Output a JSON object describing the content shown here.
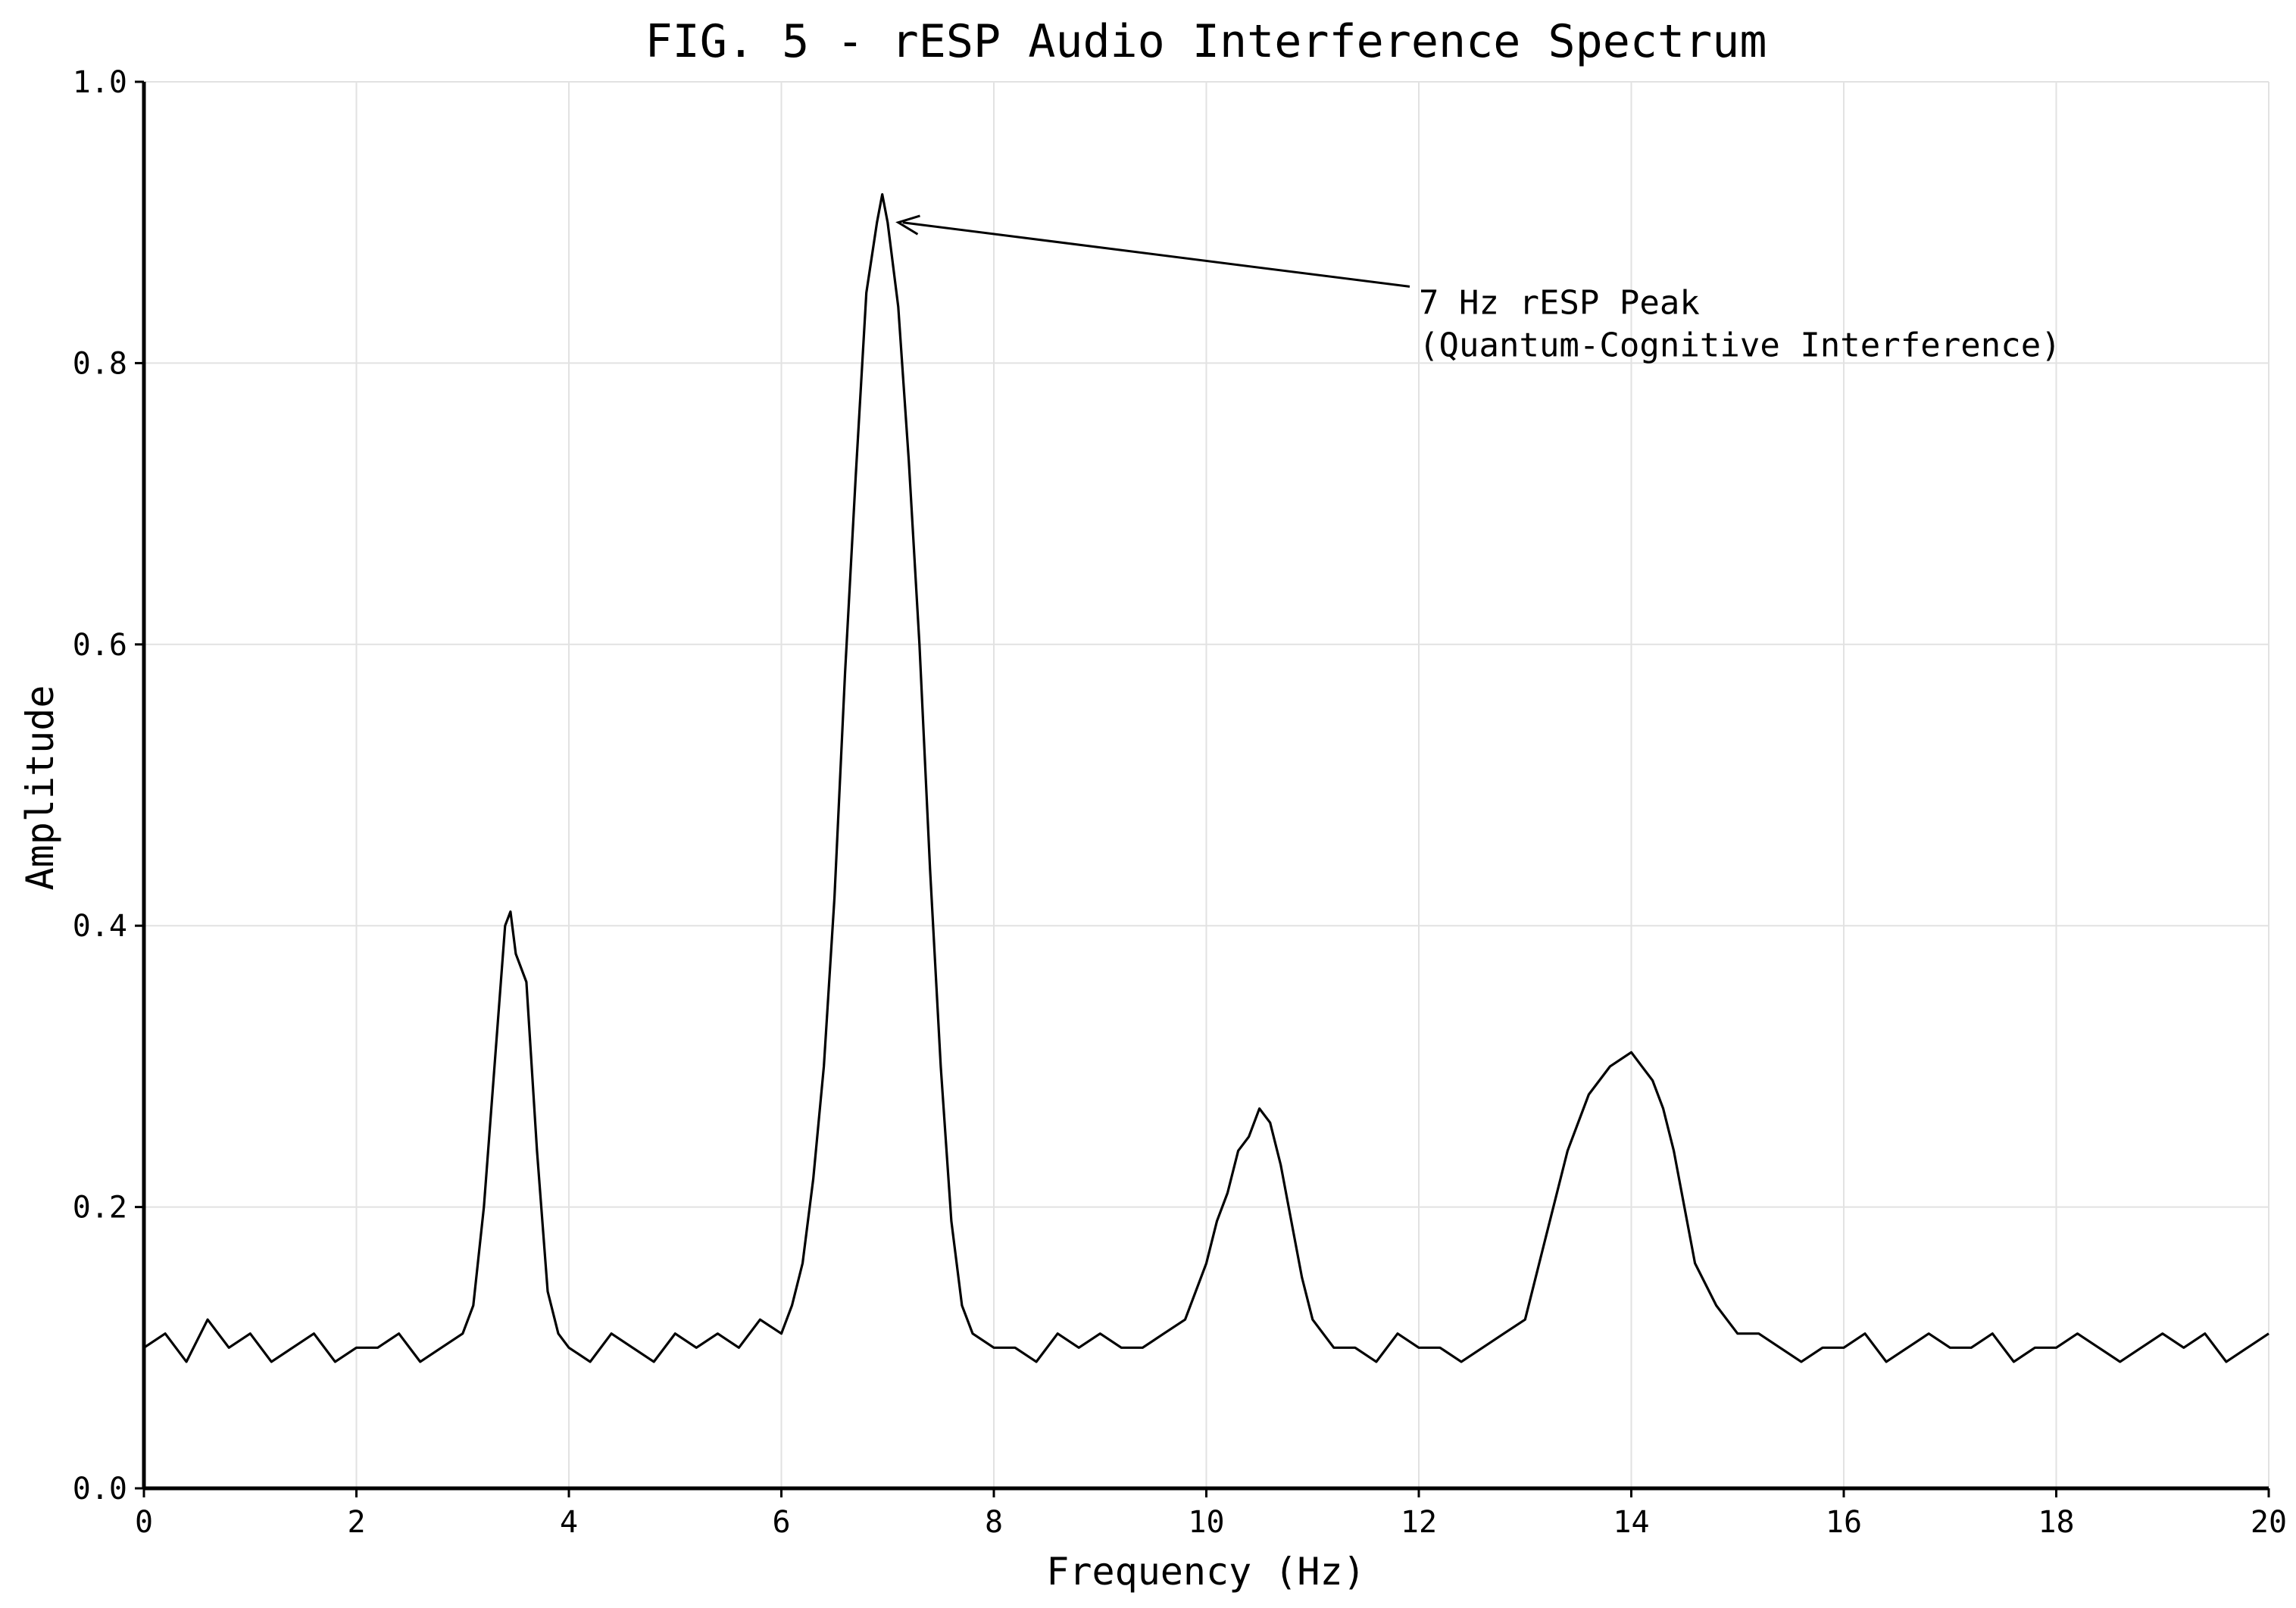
{
  "chart_data": {
    "type": "line",
    "title": "FIG. 5 - rESP Audio Interference Spectrum",
    "xlabel": "Frequency (Hz)",
    "ylabel": "Amplitude",
    "xlim": [
      0,
      20
    ],
    "ylim": [
      0.0,
      1.0
    ],
    "xticks": [
      0,
      2,
      4,
      6,
      8,
      10,
      12,
      14,
      16,
      18,
      20
    ],
    "yticks": [
      0.0,
      0.2,
      0.4,
      0.6,
      0.8,
      1.0
    ],
    "xtick_labels": [
      "0",
      "2",
      "4",
      "6",
      "8",
      "10",
      "12",
      "14",
      "16",
      "18",
      "20"
    ],
    "ytick_labels": [
      "0.0",
      "0.2",
      "0.4",
      "0.6",
      "0.8",
      "1.0"
    ],
    "grid": true,
    "line_color": "#000000",
    "series": [
      {
        "x": [
          0.0,
          0.2,
          0.4,
          0.6,
          0.8,
          1.0,
          1.2,
          1.4,
          1.6,
          1.8,
          2.0,
          2.2,
          2.4,
          2.6,
          2.8,
          3.0,
          3.1,
          3.2,
          3.3,
          3.4,
          3.45,
          3.5,
          3.6,
          3.7,
          3.8,
          3.9,
          4.0,
          4.2,
          4.4,
          4.6,
          4.8,
          5.0,
          5.2,
          5.4,
          5.6,
          5.8,
          6.0,
          6.1,
          6.2,
          6.3,
          6.4,
          6.5,
          6.6,
          6.7,
          6.8,
          6.9,
          6.95,
          7.0,
          7.1,
          7.2,
          7.3,
          7.4,
          7.5,
          7.6,
          7.7,
          7.8,
          8.0,
          8.2,
          8.4,
          8.6,
          8.8,
          9.0,
          9.2,
          9.4,
          9.6,
          9.8,
          10.0,
          10.1,
          10.2,
          10.3,
          10.4,
          10.5,
          10.6,
          10.7,
          10.8,
          10.9,
          11.0,
          11.2,
          11.4,
          11.6,
          11.8,
          12.0,
          12.2,
          12.4,
          12.6,
          12.8,
          13.0,
          13.2,
          13.4,
          13.6,
          13.8,
          14.0,
          14.1,
          14.2,
          14.3,
          14.4,
          14.5,
          14.6,
          14.8,
          15.0,
          15.2,
          15.4,
          15.6,
          15.8,
          16.0,
          16.2,
          16.4,
          16.6,
          16.8,
          17.0,
          17.2,
          17.4,
          17.6,
          17.8,
          18.0,
          18.2,
          18.4,
          18.6,
          18.8,
          19.0,
          19.2,
          19.4,
          19.6,
          19.8,
          20.0
        ],
        "y": [
          0.1,
          0.11,
          0.09,
          0.12,
          0.1,
          0.11,
          0.09,
          0.1,
          0.11,
          0.09,
          0.1,
          0.1,
          0.11,
          0.09,
          0.1,
          0.11,
          0.13,
          0.2,
          0.3,
          0.4,
          0.41,
          0.38,
          0.36,
          0.24,
          0.14,
          0.11,
          0.1,
          0.09,
          0.11,
          0.1,
          0.09,
          0.11,
          0.1,
          0.11,
          0.1,
          0.12,
          0.11,
          0.13,
          0.16,
          0.22,
          0.3,
          0.42,
          0.58,
          0.72,
          0.85,
          0.9,
          0.92,
          0.9,
          0.84,
          0.73,
          0.6,
          0.44,
          0.3,
          0.19,
          0.13,
          0.11,
          0.1,
          0.1,
          0.09,
          0.11,
          0.1,
          0.11,
          0.1,
          0.1,
          0.11,
          0.12,
          0.16,
          0.19,
          0.21,
          0.24,
          0.25,
          0.27,
          0.26,
          0.23,
          0.19,
          0.15,
          0.12,
          0.1,
          0.1,
          0.09,
          0.11,
          0.1,
          0.1,
          0.09,
          0.1,
          0.11,
          0.12,
          0.18,
          0.24,
          0.28,
          0.3,
          0.31,
          0.3,
          0.29,
          0.27,
          0.24,
          0.2,
          0.16,
          0.13,
          0.11,
          0.11,
          0.1,
          0.09,
          0.1,
          0.1,
          0.11,
          0.09,
          0.1,
          0.11,
          0.1,
          0.1,
          0.11,
          0.09,
          0.1,
          0.1,
          0.11,
          0.1,
          0.09,
          0.1,
          0.11,
          0.1,
          0.11,
          0.09,
          0.1,
          0.11
        ]
      }
    ],
    "annotations": [
      {
        "lines": [
          "7 Hz rESP Peak",
          "(Quantum-Cognitive Interference)"
        ],
        "point": [
          7.1,
          0.9
        ],
        "text_at": [
          12.0,
          0.835
        ]
      }
    ]
  }
}
